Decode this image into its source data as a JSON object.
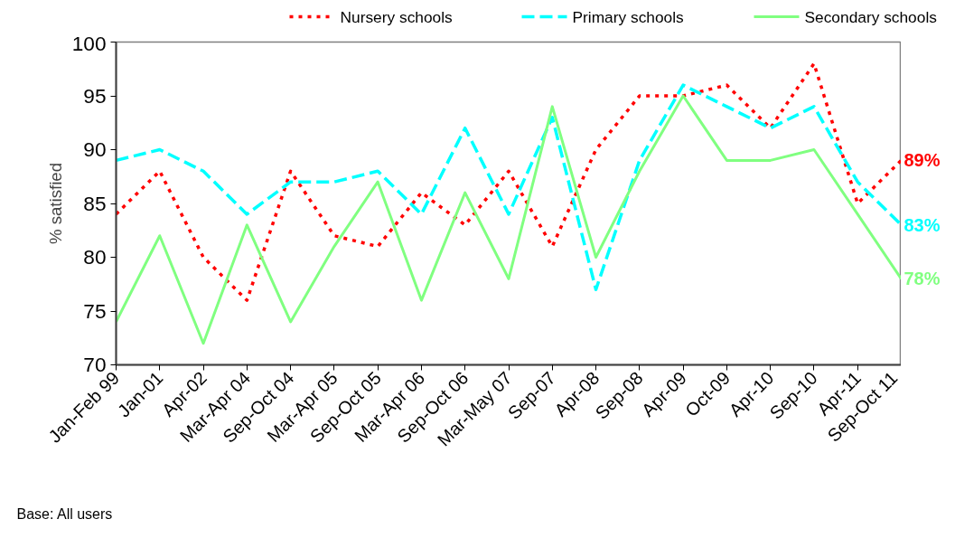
{
  "chart_data": {
    "type": "line",
    "ylabel": "% satisfied",
    "annotations": [
      "Base: All users"
    ],
    "categories": [
      "Jan-Feb 99",
      "Jan-01",
      "Apr-02",
      "Mar-Apr 04",
      "Sep-Oct 04",
      "Mar-Apr 05",
      "Sep-Oct 05",
      "Mar-Apr 06",
      "Sep-Oct 06",
      "Mar-May 07",
      "Sep-07",
      "Apr-08",
      "Sep-08",
      "Apr-09",
      "Oct-09",
      "Apr-10",
      "Sep-10",
      "Apr-11",
      "Sep-Oct 11"
    ],
    "series": [
      {
        "name": "Nursery schools",
        "color": "#ff0000",
        "line_style": "dotted",
        "values": [
          84,
          88,
          80,
          76,
          88,
          82,
          81,
          86,
          83,
          88,
          81,
          90,
          95,
          95,
          96,
          92,
          98,
          85,
          89
        ],
        "value_labels": [
          null,
          null,
          null,
          null,
          null,
          null,
          null,
          null,
          null,
          null,
          null,
          null,
          null,
          null,
          null,
          null,
          null,
          null,
          "89%"
        ]
      },
      {
        "name": "Primary schools",
        "color": "#00ffff",
        "line_style": "dashed",
        "values": [
          89,
          90,
          88,
          84,
          87,
          87,
          88,
          84,
          92,
          84,
          93,
          77,
          89,
          96,
          94,
          92,
          94,
          87,
          83
        ],
        "value_labels": [
          null,
          null,
          null,
          null,
          null,
          null,
          null,
          null,
          null,
          null,
          null,
          null,
          null,
          null,
          null,
          null,
          null,
          null,
          "83%"
        ]
      },
      {
        "name": "Secondary schools",
        "color": "#80ff80",
        "line_style": "solid",
        "values": [
          74,
          82,
          72,
          83,
          74,
          81,
          87,
          76,
          86,
          78,
          94,
          80,
          88,
          95,
          89,
          89,
          90,
          84,
          78
        ],
        "value_labels": [
          null,
          null,
          null,
          null,
          null,
          null,
          null,
          null,
          null,
          null,
          null,
          null,
          null,
          null,
          null,
          null,
          null,
          null,
          "78%"
        ]
      }
    ],
    "ylim": [
      70,
      100
    ],
    "yticks": [
      70,
      75,
      80,
      85,
      90,
      95,
      100
    ],
    "grid": false,
    "legend": "top",
    "marker": "none"
  }
}
